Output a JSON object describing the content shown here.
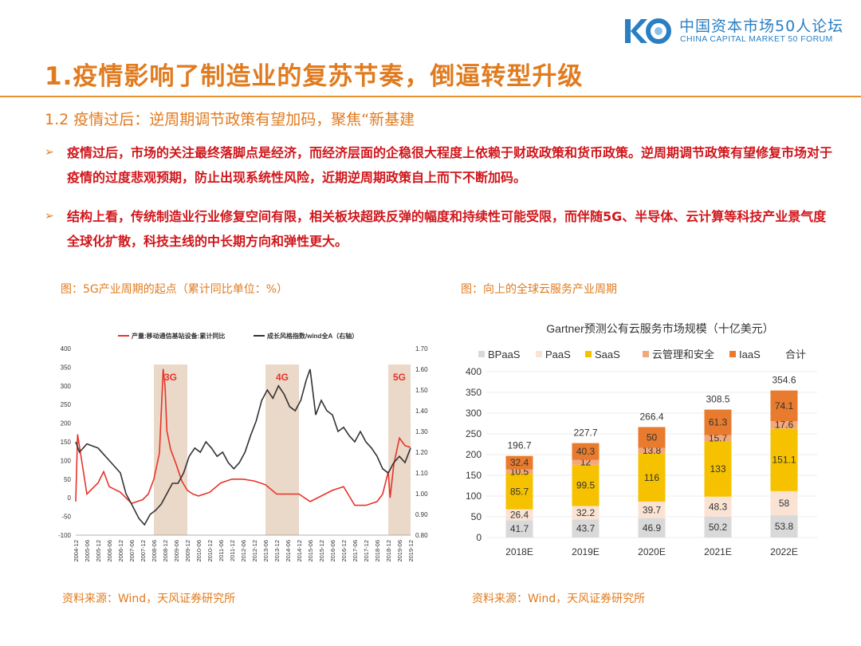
{
  "header": {
    "logo_cn": "中国资本市场50人论坛",
    "logo_en": "CHINA CAPITAL MARKET 50 FORUM",
    "logo_mark": "K50"
  },
  "title": "1.疫情影响了制造业的复苏节奏，倒逼转型升级",
  "subtitle": "1.2 疫情过后：逆周期调节政策有望加码，聚焦“新基建",
  "bullets": [
    {
      "mark": "➢",
      "text": "疫情过后，市场的关注最终落脚点是经济，而经济层面的企稳很大程度上依赖于财政政策和货币政策。逆周期调节政策有望修复市场对于疫情的过度悲观预期，防止出现系统性风险，近期逆周期政策自上而下不断加码。"
    },
    {
      "mark": "➢",
      "text": "结构上看，传统制造业行业修复空间有限，相关板块超跌反弹的幅度和持续性可能受限，而伴随5G、半导体、云计算等科技产业景气度全球化扩散，科技主线的中长期方向和弹性更大。"
    }
  ],
  "left_figure": {
    "caption": "图：5G产业周期的起点（累计同比单位：%）",
    "source": "资料来源：Wind，天风证券研究所"
  },
  "right_figure": {
    "caption": "图：向上的全球云服务产业周期",
    "source": "资料来源：Wind，天风证券研究所"
  },
  "colors": {
    "accent": "#e07b1f",
    "red_text": "#d0161b",
    "logo": "#2a7fc4"
  },
  "chart_data": [
    {
      "type": "line",
      "title": "",
      "legend": [
        "产量:移动通信基站设备:累计同比",
        "成长风格指数/wind全A（右轴）"
      ],
      "legend_placement": "top",
      "series_colors": [
        "#e8332a",
        "#333333"
      ],
      "x_ticks": [
        "2004-12",
        "2005-06",
        "2005-12",
        "2006-06",
        "2006-12",
        "2007-06",
        "2007-12",
        "2008-06",
        "2008-12",
        "2009-06",
        "2009-12",
        "2010-06",
        "2010-12",
        "2011-06",
        "2011-12",
        "2012-06",
        "2012-12",
        "2013-06",
        "2013-12",
        "2014-06",
        "2014-12",
        "2015-06",
        "2015-12",
        "2016-06",
        "2016-12",
        "2017-06",
        "2017-12",
        "2018-06",
        "2018-12",
        "2019-06",
        "2019-12"
      ],
      "y_left_ticks": [
        "400",
        "350",
        "300",
        "250",
        "200",
        "150",
        "100",
        "50",
        "0",
        "-50",
        "-100"
      ],
      "y_left_range": [
        -100,
        400
      ],
      "y_right_ticks": [
        "1.70",
        "1.60",
        "1.50",
        "1.40",
        "1.30",
        "1.20",
        "1.10",
        "1.00",
        "0.90",
        "0.80"
      ],
      "y_right_range": [
        0.8,
        1.7
      ],
      "shaded_periods": [
        {
          "label": "3G",
          "start": "2008-06",
          "end": "2009-12"
        },
        {
          "label": "4G",
          "start": "2013-06",
          "end": "2014-12"
        },
        {
          "label": "5G",
          "start": "2018-12",
          "end": "2019-12"
        }
      ],
      "series": [
        {
          "name": "产量:移动通信基站设备:累计同比",
          "axis": "left",
          "x": [
            "2004-12",
            "2005-01",
            "2005-06",
            "2005-12",
            "2006-03",
            "2006-06",
            "2006-12",
            "2007-06",
            "2007-12",
            "2008-03",
            "2008-06",
            "2008-09",
            "2008-11",
            "2008-12",
            "2009-01",
            "2009-03",
            "2009-06",
            "2009-09",
            "2009-12",
            "2010-03",
            "2010-06",
            "2010-12",
            "2011-06",
            "2011-12",
            "2012-06",
            "2012-12",
            "2013-06",
            "2013-12",
            "2014-06",
            "2014-12",
            "2015-03",
            "2015-06",
            "2015-12",
            "2016-06",
            "2016-12",
            "2017-06",
            "2017-12",
            "2018-06",
            "2018-09",
            "2018-12",
            "2019-01",
            "2019-03",
            "2019-06",
            "2019-09",
            "2019-12"
          ],
          "y": [
            -10,
            170,
            10,
            40,
            70,
            30,
            15,
            -15,
            -5,
            10,
            50,
            120,
            345,
            300,
            180,
            130,
            90,
            45,
            20,
            10,
            5,
            15,
            40,
            50,
            50,
            45,
            35,
            10,
            10,
            10,
            0,
            -10,
            5,
            20,
            30,
            -20,
            -20,
            -10,
            10,
            70,
            0,
            90,
            160,
            140,
            135
          ]
        },
        {
          "name": "成长风格指数/wind全A（右轴）",
          "axis": "right",
          "x": [
            "2004-12",
            "2005-02",
            "2005-06",
            "2005-12",
            "2006-06",
            "2006-12",
            "2007-03",
            "2007-06",
            "2007-10",
            "2008-01",
            "2008-04",
            "2008-07",
            "2008-10",
            "2009-01",
            "2009-04",
            "2009-07",
            "2009-10",
            "2010-01",
            "2010-04",
            "2010-07",
            "2010-10",
            "2011-01",
            "2011-04",
            "2011-07",
            "2011-10",
            "2012-01",
            "2012-04",
            "2012-07",
            "2012-10",
            "2013-01",
            "2013-04",
            "2013-07",
            "2013-10",
            "2014-01",
            "2014-04",
            "2014-07",
            "2014-10",
            "2015-01",
            "2015-04",
            "2015-06",
            "2015-09",
            "2015-12",
            "2016-03",
            "2016-06",
            "2016-09",
            "2016-12",
            "2017-03",
            "2017-06",
            "2017-09",
            "2017-12",
            "2018-03",
            "2018-06",
            "2018-09",
            "2018-12",
            "2019-03",
            "2019-06",
            "2019-09",
            "2019-12"
          ],
          "y": [
            1.25,
            1.2,
            1.24,
            1.22,
            1.16,
            1.1,
            1.0,
            0.95,
            0.88,
            0.85,
            0.9,
            0.92,
            0.95,
            1.0,
            1.05,
            1.05,
            1.1,
            1.18,
            1.22,
            1.2,
            1.25,
            1.22,
            1.18,
            1.2,
            1.15,
            1.12,
            1.15,
            1.2,
            1.28,
            1.35,
            1.45,
            1.5,
            1.46,
            1.52,
            1.48,
            1.42,
            1.4,
            1.45,
            1.55,
            1.6,
            1.38,
            1.45,
            1.4,
            1.38,
            1.3,
            1.32,
            1.28,
            1.25,
            1.3,
            1.25,
            1.22,
            1.18,
            1.12,
            1.1,
            1.15,
            1.18,
            1.15,
            1.22
          ]
        }
      ]
    },
    {
      "type": "bar",
      "stacked": true,
      "title": "Gartner预测公有云服务市场规模（十亿美元）",
      "legend_placement": "top",
      "categories": [
        "2018E",
        "2019E",
        "2020E",
        "2021E",
        "2022E"
      ],
      "ylim": [
        0,
        400
      ],
      "y_ticks": [
        0,
        50,
        100,
        150,
        200,
        250,
        300,
        350,
        400
      ],
      "series": [
        {
          "name": "BPaaS",
          "color": "#d9d9d9",
          "values": [
            41.7,
            43.7,
            46.9,
            50.2,
            53.8
          ]
        },
        {
          "name": "PaaS",
          "color": "#fbe3d4",
          "values": [
            26.4,
            32.2,
            39.7,
            48.3,
            58
          ]
        },
        {
          "name": "SaaS",
          "color": "#f6c200",
          "values": [
            85.7,
            99.5,
            116,
            133,
            151.1
          ]
        },
        {
          "name": "云管理和安全",
          "color": "#f2a878",
          "values": [
            10.5,
            12,
            13.8,
            15.7,
            17.6
          ]
        },
        {
          "name": "IaaS",
          "color": "#e87b2d",
          "values": [
            32.4,
            40.3,
            50,
            61.3,
            74.1
          ]
        }
      ],
      "totals_label": "合计",
      "totals": [
        196.7,
        227.7,
        266.4,
        308.5,
        354.6
      ]
    }
  ]
}
